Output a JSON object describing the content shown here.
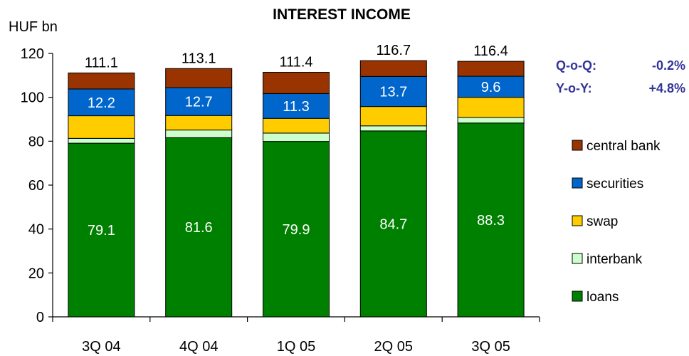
{
  "chart_data": {
    "type": "bar",
    "stacked": true,
    "title": "INTEREST INCOME",
    "ylabel": "HUF bn",
    "xlabel": "",
    "ylim": [
      0,
      120
    ],
    "yticks": [
      "0",
      "20",
      "40",
      "60",
      "80",
      "100",
      "120"
    ],
    "categories": [
      "3Q 04",
      "4Q 04",
      "1Q 05",
      "2Q 05",
      "3Q 05"
    ],
    "totals": [
      111.1,
      113.1,
      111.4,
      116.7,
      116.4
    ],
    "total_labels": [
      "111.1",
      "113.1",
      "111.4",
      "116.7",
      "116.4"
    ],
    "series": [
      {
        "name": "loans",
        "color": "#008000",
        "values": [
          79.1,
          81.6,
          79.9,
          84.7,
          88.3
        ],
        "labels": [
          "79.1",
          "81.6",
          "79.9",
          "84.7",
          "88.3"
        ]
      },
      {
        "name": "interbank",
        "color": "#CCFFCC",
        "values": [
          2.2,
          3.5,
          3.8,
          2.3,
          2.5
        ]
      },
      {
        "name": "swap",
        "color": "#FFCC00",
        "values": [
          10.3,
          6.6,
          6.7,
          8.8,
          9.2
        ]
      },
      {
        "name": "securities",
        "color": "#0066CC",
        "values": [
          12.2,
          12.7,
          11.3,
          13.7,
          9.6
        ],
        "labels": [
          "12.2",
          "12.7",
          "11.3",
          "13.7",
          "9.6"
        ]
      },
      {
        "name": "central bank",
        "color": "#993300",
        "values": [
          7.3,
          8.7,
          9.7,
          7.2,
          6.8
        ]
      }
    ],
    "legend_order": [
      "central bank",
      "securities",
      "swap",
      "interbank",
      "loans"
    ],
    "legend_position": "right",
    "annotations": [
      {
        "label": "Q-o-Q:",
        "value": "-0.2%"
      },
      {
        "label": "Y-o-Y:",
        "value": "+4.8%"
      }
    ],
    "annotation_color": "#333399",
    "grid": false
  }
}
